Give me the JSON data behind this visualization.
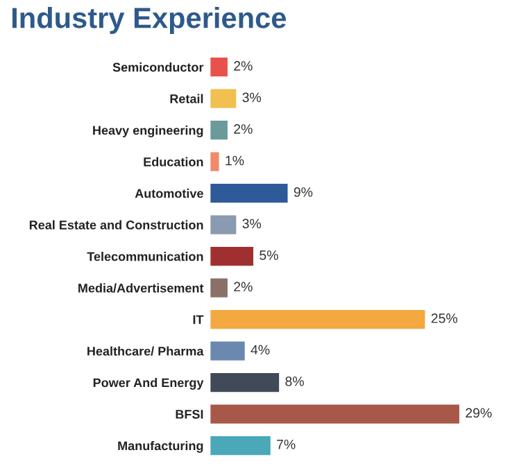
{
  "chart_data": {
    "type": "bar",
    "orientation": "horizontal",
    "title": "Industry Experience",
    "categories": [
      "Semiconductor",
      "Retail",
      "Heavy engineering",
      "Education",
      "Automotive",
      "Real Estate and Construction",
      "Telecommunication",
      "Media/Advertisement",
      "IT",
      "Healthcare/ Pharma",
      "Power And Energy",
      "BFSI",
      "Manufacturing"
    ],
    "values": [
      2,
      3,
      2,
      1,
      9,
      3,
      5,
      2,
      25,
      4,
      8,
      29,
      7
    ],
    "value_labels": [
      "2%",
      "3%",
      "2%",
      "1%",
      "9%",
      "3%",
      "5%",
      "2%",
      "25%",
      "4%",
      "8%",
      "29%",
      "7%"
    ],
    "colors": [
      "#e8524a",
      "#f0c050",
      "#6a9a9a",
      "#f08a6a",
      "#2e5a9a",
      "#8a9ab0",
      "#a03030",
      "#8a7068",
      "#f4a840",
      "#6a88b0",
      "#404a58",
      "#a85848",
      "#4aa8b8"
    ],
    "grid": false,
    "legend": false
  }
}
